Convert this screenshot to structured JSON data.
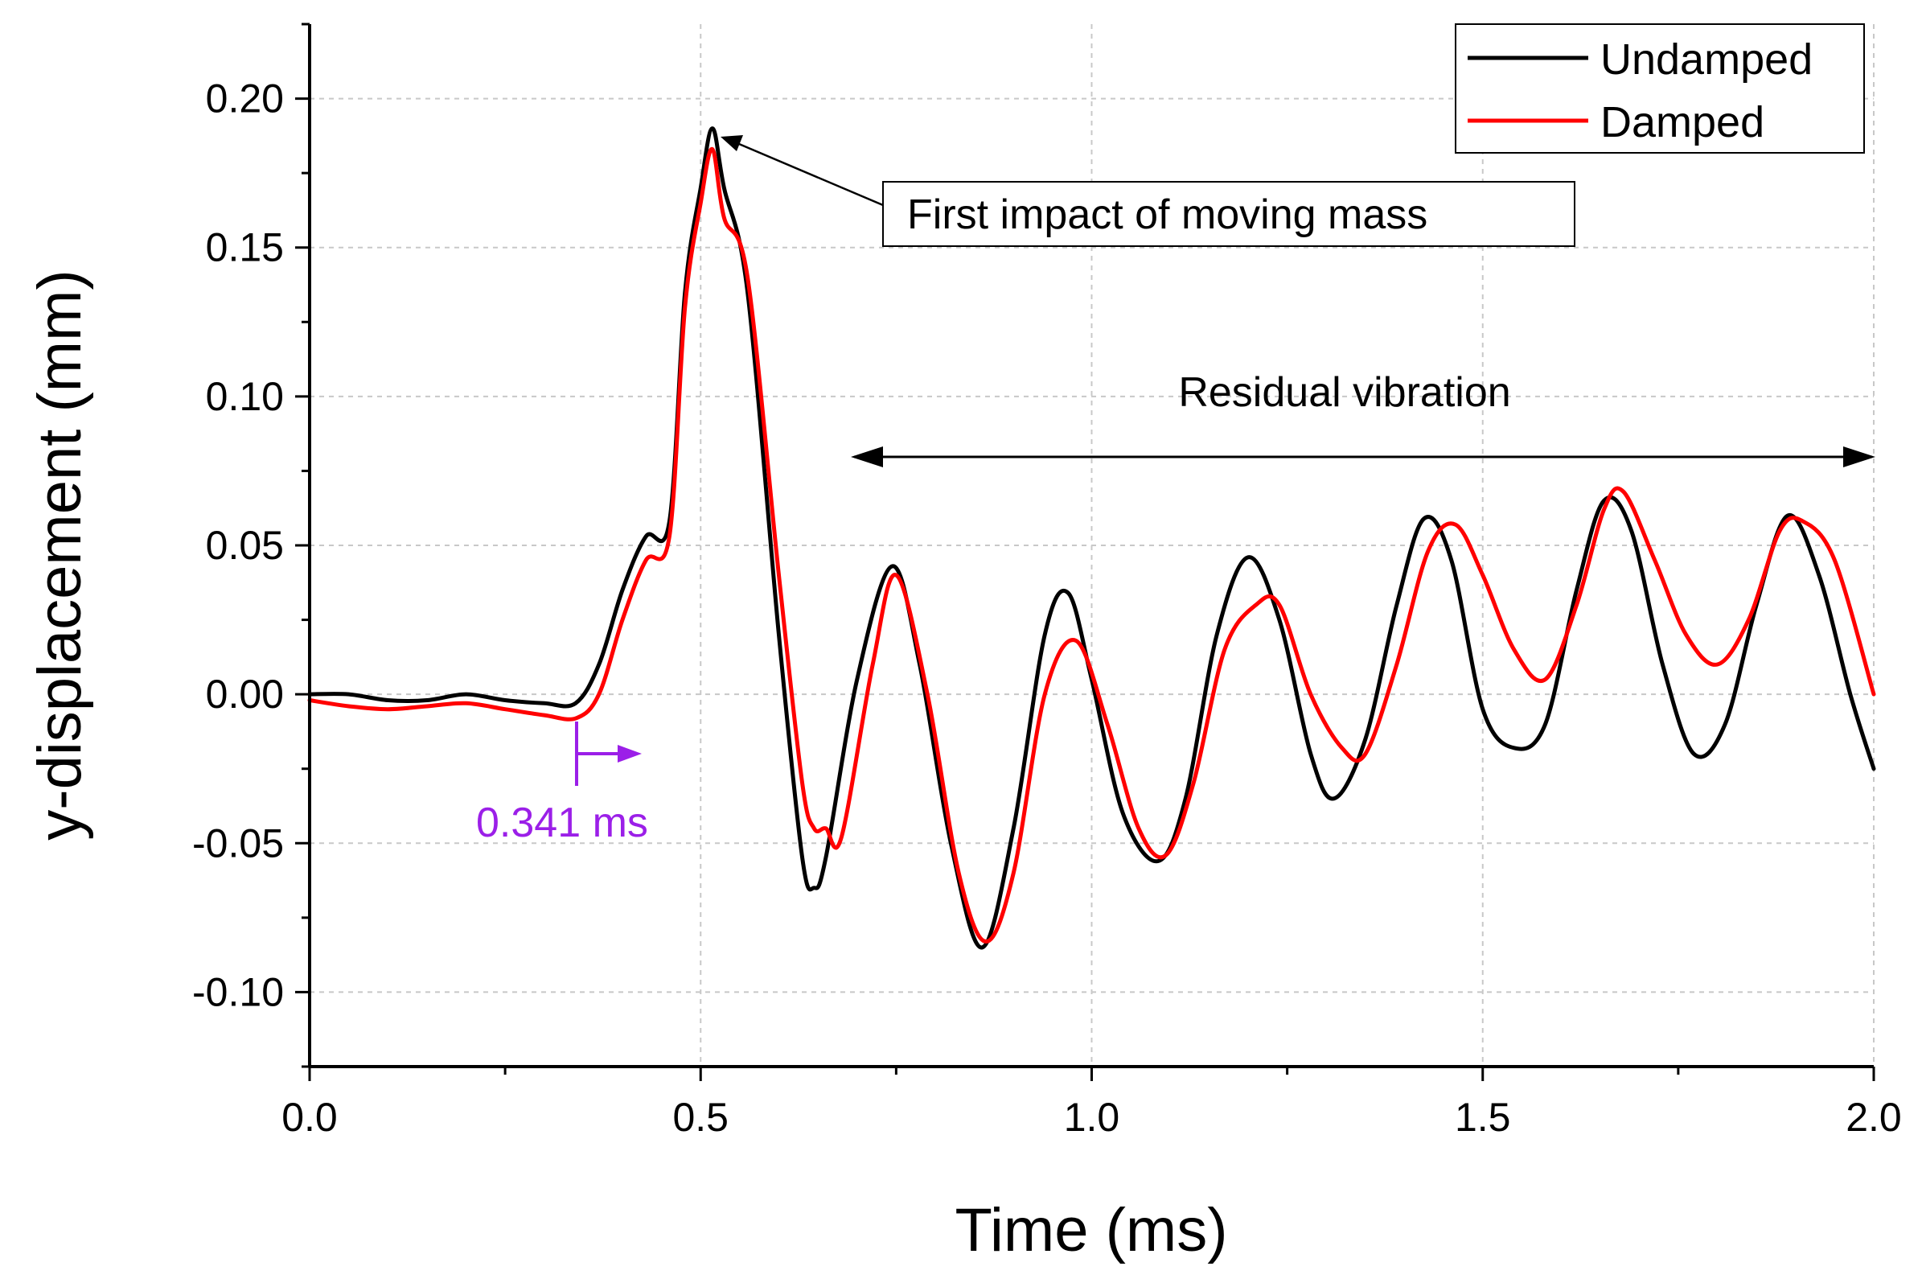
{
  "chart_data": {
    "type": "line",
    "xlabel": "Time (ms)",
    "ylabel": "y-displacement (mm)",
    "xlim": [
      0.0,
      2.0
    ],
    "ylim": [
      -0.125,
      0.225
    ],
    "xticks": [
      0.0,
      0.5,
      1.0,
      1.5,
      2.0
    ],
    "xtick_labels": [
      "0.0",
      "0.5",
      "1.0",
      "1.5",
      "2.0"
    ],
    "yticks": [
      -0.1,
      -0.05,
      0.0,
      0.05,
      0.1,
      0.15,
      0.2
    ],
    "ytick_labels": [
      "-0.10",
      "-0.05",
      "0.00",
      "0.05",
      "0.10",
      "0.15",
      "0.20"
    ],
    "grid": true,
    "legend_position": "top-right",
    "series": [
      {
        "name": "Undamped",
        "color": "#000000",
        "x": [
          0.0,
          0.05,
          0.1,
          0.15,
          0.2,
          0.25,
          0.3,
          0.34,
          0.37,
          0.4,
          0.43,
          0.46,
          0.48,
          0.5,
          0.515,
          0.53,
          0.56,
          0.6,
          0.63,
          0.645,
          0.66,
          0.7,
          0.745,
          0.78,
          0.82,
          0.86,
          0.9,
          0.94,
          0.97,
          1.0,
          1.04,
          1.085,
          1.12,
          1.16,
          1.2,
          1.24,
          1.28,
          1.31,
          1.35,
          1.39,
          1.425,
          1.46,
          1.5,
          1.54,
          1.58,
          1.62,
          1.655,
          1.69,
          1.73,
          1.77,
          1.81,
          1.85,
          1.89,
          1.93,
          1.97,
          2.0
        ],
        "y": [
          0.0,
          0.0,
          -0.002,
          -0.002,
          0.0,
          -0.002,
          -0.003,
          -0.003,
          0.01,
          0.035,
          0.053,
          0.058,
          0.135,
          0.17,
          0.19,
          0.17,
          0.135,
          0.02,
          -0.055,
          -0.065,
          -0.055,
          0.005,
          0.043,
          0.01,
          -0.05,
          -0.085,
          -0.045,
          0.02,
          0.034,
          0.005,
          -0.04,
          -0.056,
          -0.035,
          0.02,
          0.046,
          0.025,
          -0.02,
          -0.035,
          -0.015,
          0.03,
          0.059,
          0.045,
          -0.005,
          -0.018,
          -0.01,
          0.035,
          0.065,
          0.055,
          0.01,
          -0.02,
          -0.01,
          0.03,
          0.06,
          0.04,
          0.0,
          -0.025
        ]
      },
      {
        "name": "Damped",
        "color": "#ff0000",
        "x": [
          0.0,
          0.05,
          0.1,
          0.15,
          0.2,
          0.25,
          0.3,
          0.341,
          0.37,
          0.4,
          0.43,
          0.46,
          0.48,
          0.5,
          0.515,
          0.53,
          0.56,
          0.6,
          0.63,
          0.645,
          0.66,
          0.68,
          0.72,
          0.75,
          0.79,
          0.83,
          0.865,
          0.9,
          0.94,
          0.98,
          1.02,
          1.06,
          1.095,
          1.13,
          1.17,
          1.21,
          1.24,
          1.28,
          1.32,
          1.35,
          1.39,
          1.43,
          1.465,
          1.5,
          1.54,
          1.58,
          1.62,
          1.655,
          1.68,
          1.72,
          1.76,
          1.8,
          1.84,
          1.88,
          1.91,
          1.95,
          2.0
        ],
        "y": [
          -0.002,
          -0.004,
          -0.005,
          -0.004,
          -0.003,
          -0.005,
          -0.007,
          -0.008,
          0.0,
          0.025,
          0.045,
          0.053,
          0.13,
          0.165,
          0.183,
          0.16,
          0.14,
          0.04,
          -0.03,
          -0.045,
          -0.045,
          -0.048,
          0.01,
          0.04,
          0.0,
          -0.06,
          -0.083,
          -0.06,
          0.0,
          0.018,
          -0.01,
          -0.045,
          -0.054,
          -0.03,
          0.015,
          0.03,
          0.03,
          0.0,
          -0.018,
          -0.02,
          0.01,
          0.048,
          0.057,
          0.04,
          0.015,
          0.005,
          0.03,
          0.062,
          0.068,
          0.045,
          0.02,
          0.01,
          0.025,
          0.055,
          0.058,
          0.045,
          0.0
        ]
      }
    ],
    "annotations": {
      "first_impact": {
        "text": "First impact of moving mass",
        "target_x": 0.515,
        "target_y": 0.19
      },
      "residual": {
        "text": "Residual vibration",
        "x_start": 0.69,
        "x_end": 2.0,
        "y": 0.08
      },
      "onset": {
        "text": "0.341 ms",
        "x": 0.341,
        "y": -0.015,
        "color": "#9b1fe8"
      }
    }
  }
}
